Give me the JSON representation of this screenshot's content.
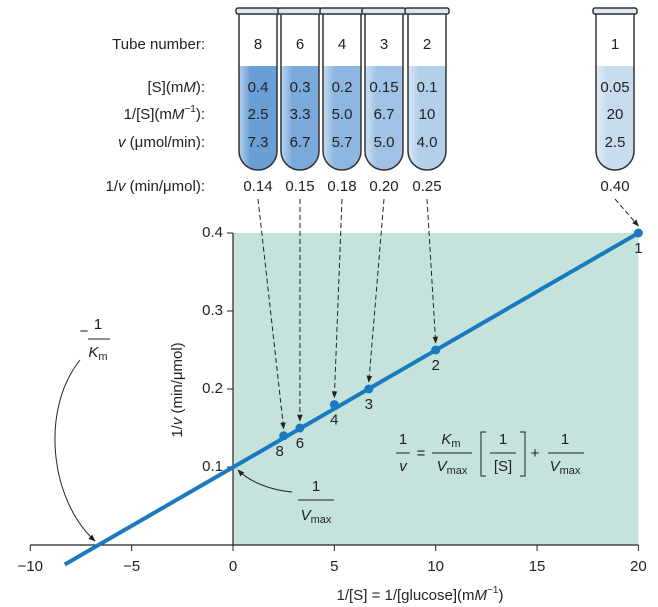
{
  "chart_data": {
    "type": "line",
    "xlim": [
      -10,
      20
    ],
    "xticks": [
      {
        "value": -10,
        "label": "−10"
      },
      {
        "value": -5,
        "label": "−5"
      },
      0,
      5,
      10,
      15,
      20
    ],
    "ylim": [
      0,
      0.4
    ],
    "yticks": [
      0.1,
      0.2,
      0.3,
      0.4
    ],
    "plot_background": "#c5e3dc",
    "x_label": [
      {
        "text": "1/[S] = 1/[glucose](m"
      },
      {
        "text": "M",
        "italic": true
      },
      {
        "text": "−1",
        "sup": true
      },
      {
        "text": ")"
      }
    ],
    "y_label": [
      {
        "text": "1/"
      },
      {
        "text": "v",
        "italic": true
      },
      {
        "text": " (min/μmol)"
      }
    ],
    "series": [
      {
        "color": "#1a7abf",
        "x": [
          2.5,
          3.3,
          5.0,
          6.7,
          10,
          20
        ],
        "x_labels": [
          "2.5",
          "3.3",
          "5.0",
          "6.7",
          "10",
          "20"
        ],
        "values": [
          0.14,
          0.15,
          0.18,
          0.2,
          0.25,
          0.4
        ],
        "value_labels": [
          "0.14",
          "0.15",
          "0.18",
          "0.20",
          "0.25",
          "0.40"
        ],
        "point_labels": [
          "8",
          "6",
          "4",
          "3",
          "2",
          "1"
        ]
      }
    ],
    "fit_line": {
      "color": "#1a7abf",
      "x": [
        -8.3,
        20
      ],
      "values": [
        -0.025,
        0.4
      ]
    },
    "tubes": {
      "row_labels": [
        [
          {
            "text": "Tube number:"
          }
        ],
        [
          {
            "text": "[S](m"
          },
          {
            "text": "M",
            "italic": true
          },
          {
            "text": "):"
          }
        ],
        [
          {
            "text": "1/[S](m"
          },
          {
            "text": "M",
            "italic": true
          },
          {
            "text": "−1",
            "sup": true
          },
          {
            "text": "):"
          }
        ],
        [
          {
            "text": "v",
            "italic": true
          },
          {
            "text": " (μmol/min):"
          }
        ],
        [
          {
            "text": "1/"
          },
          {
            "text": "v",
            "italic": true
          },
          {
            "text": " (min/μmol):"
          }
        ]
      ],
      "s_values": [
        "0.4",
        "0.3",
        "0.2",
        "0.15",
        "0.1",
        "0.05"
      ],
      "v_values": [
        "7.3",
        "6.7",
        "5.7",
        "5.0",
        "4.0",
        "2.5"
      ]
    },
    "equation": {
      "lhs_num": "1",
      "lhs_den": "v",
      "equals": "=",
      "k": "K",
      "k_sub": "m",
      "v": "V",
      "v_sub": "max",
      "inner_num": "1",
      "inner_den": "[S]",
      "plus": "+",
      "r_num": "1"
    },
    "km_label": {
      "minus": "−",
      "num": "1",
      "k": "K",
      "sub": "m"
    },
    "vmax_label": {
      "num": "1",
      "v": "V",
      "sub": "max"
    }
  }
}
